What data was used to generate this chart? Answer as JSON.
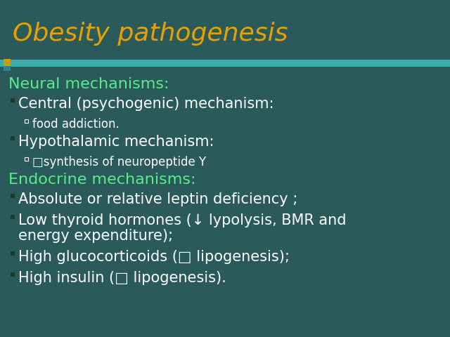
{
  "title": "Obesity pathogenesis",
  "title_color": "#E8A000",
  "background_color": "#2A5A5A",
  "header_bar_color": "#3AAEAE",
  "green_text_color": "#55EE88",
  "white_text_color": "#FFFFFF",
  "bullet_color": "#1A4A3A",
  "title_fontsize": 26,
  "section_fontsize": 16,
  "bullet_fontsize": 15,
  "sub_bullet_fontsize": 12,
  "lines": [
    {
      "type": "section",
      "text": "Neural mechanisms:"
    },
    {
      "type": "bullet",
      "text": "Central (psychogenic) mechanism:"
    },
    {
      "type": "sub_bullet",
      "text": "food addiction."
    },
    {
      "type": "bullet",
      "text": "Hypothalamic mechanism:"
    },
    {
      "type": "sub_bullet",
      "text": "□synthesis of neuropeptide Y"
    },
    {
      "type": "section",
      "text": "Endocrine mechanisms:"
    },
    {
      "type": "bullet",
      "text": "Absolute or relative leptin deficiency ;"
    },
    {
      "type": "bullet_wrap",
      "text1": "Low thyroid hormones (↓ lypolysis, BMR and",
      "text2": "energy expenditure);"
    },
    {
      "type": "bullet",
      "text": "High glucocorticoids (□ lipogenesis);"
    },
    {
      "type": "bullet",
      "text": "High insulin (□ lipogenesis)."
    }
  ]
}
